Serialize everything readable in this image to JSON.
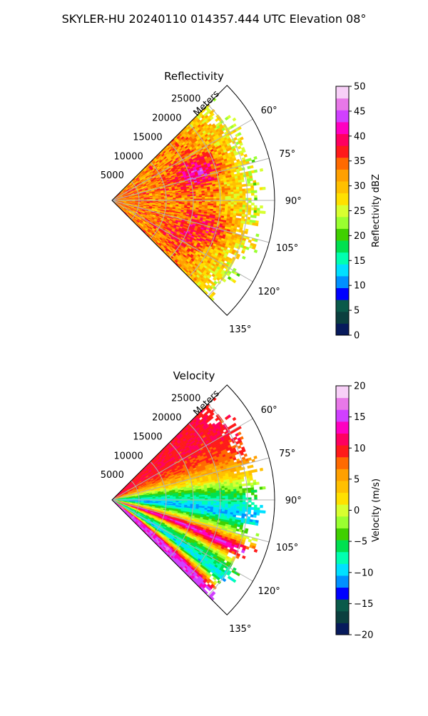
{
  "figure": {
    "title": "SKYLER-HU  20240110  014357.444 UTC Elevation 08°"
  },
  "chart_data": [
    {
      "type": "heatmap",
      "subtype": "polar-sector (PPI)",
      "title": "Reflectivity",
      "radial_label": "Meters",
      "radial_ticks": [
        "5000",
        "10000",
        "15000",
        "20000",
        "25000"
      ],
      "angle_ticks": [
        "60°",
        "75°",
        "90°",
        "105°",
        "120°",
        "135°"
      ],
      "angle_range_deg": [
        45,
        135
      ],
      "range_max_m": 30000,
      "colorbar": {
        "label": "Reflectivity dBZ",
        "range": [
          0,
          50
        ],
        "ticks": [
          "0",
          "5",
          "10",
          "15",
          "20",
          "25",
          "30",
          "35",
          "40",
          "45",
          "50"
        ],
        "colors": [
          "#071a5c",
          "#0b3f3f",
          "#0a5a4a",
          "#0000ff",
          "#0090ff",
          "#00e0ff",
          "#00ffb0",
          "#00e050",
          "#40d000",
          "#9aff30",
          "#d8ff30",
          "#ffe000",
          "#ffc000",
          "#ffa000",
          "#ff6a00",
          "#ff1a1a",
          "#ff0060",
          "#ff00c0",
          "#d040ff",
          "#e878e8",
          "#f8d0f8"
        ]
      },
      "field": {
        "description": "fields within ~27 km: dominant 25-35 dBZ with cores near 40 dBZ at ~15-20 km around 70-75° and 100-110°; weaker echo 18-22 dBZ at outer edge",
        "near_core": 33,
        "cores": [
          {
            "az_deg": 72,
            "range_m": 17000,
            "value": 40
          },
          {
            "az_deg": 105,
            "range_m": 19000,
            "value": 37
          },
          {
            "az_deg": 118,
            "range_m": 14000,
            "value": 35
          }
        ],
        "edge_value": 20
      }
    },
    {
      "type": "heatmap",
      "subtype": "polar-sector (PPI)",
      "title": "Velocity",
      "radial_label": "Meters",
      "radial_ticks": [
        "5000",
        "10000",
        "15000",
        "20000",
        "25000"
      ],
      "angle_ticks": [
        "60°",
        "75°",
        "90°",
        "105°",
        "120°",
        "135°"
      ],
      "angle_range_deg": [
        45,
        135
      ],
      "range_max_m": 30000,
      "colorbar": {
        "label": "Velocity (m/s)",
        "range": [
          -20,
          20
        ],
        "ticks": [
          "−20",
          "−15",
          "−10",
          "−5",
          "0",
          "5",
          "10",
          "15",
          "20"
        ],
        "colors": [
          "#071a5c",
          "#0b3f3f",
          "#0a5a4a",
          "#0000ff",
          "#0090ff",
          "#00e0ff",
          "#00ffb0",
          "#00e050",
          "#40d000",
          "#9aff30",
          "#d8ff30",
          "#ffe000",
          "#ffc000",
          "#ffa000",
          "#ff6a00",
          "#ff1a1a",
          "#ff0060",
          "#ff00c0",
          "#d040ff",
          "#e878e8",
          "#f8d0f8"
        ]
      },
      "field": {
        "description": "outbound (red/orange, ~+10 m/s) at 50-70°, yellow/green ~0 to -5 near 75-85°, inbound cyan (-10 to -12) near 90-100°, magenta band (+15) near 100-110°, green/cyan at 115-125°, magenta (+15) band near 125-130°",
        "bands": [
          {
            "az_deg": 55,
            "value": 10
          },
          {
            "az_deg": 65,
            "value": 8
          },
          {
            "az_deg": 75,
            "value": 2
          },
          {
            "az_deg": 82,
            "value": -5
          },
          {
            "az_deg": 92,
            "value": -11
          },
          {
            "az_deg": 100,
            "value": 0
          },
          {
            "az_deg": 106,
            "value": 15
          },
          {
            "az_deg": 113,
            "value": -4
          },
          {
            "az_deg": 120,
            "value": -10
          },
          {
            "az_deg": 127,
            "value": 15
          }
        ]
      }
    }
  ]
}
